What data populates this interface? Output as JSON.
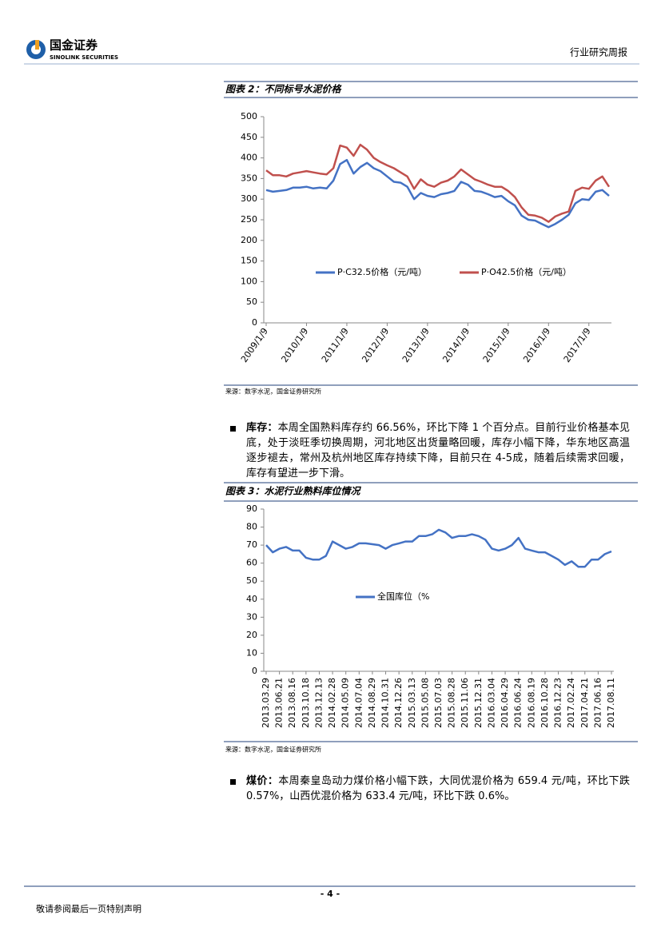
{
  "header": {
    "company_cn": "国金证券",
    "company_en": "SINOLINK SECURITIES",
    "report_type": "行业研究周报"
  },
  "chart_data": [
    {
      "type": "line",
      "title": "图表 2：不同标号水泥价格",
      "source": "来源：数字水泥，国金证券研究所",
      "categories": [
        "2009/1/9",
        null,
        null,
        null,
        null,
        null,
        "2010/1/9",
        null,
        null,
        null,
        null,
        null,
        "2011/1/9",
        null,
        null,
        null,
        null,
        null,
        "2012/1/9",
        null,
        null,
        null,
        null,
        null,
        "2013/1/9",
        null,
        null,
        null,
        null,
        null,
        "2014/1/9",
        null,
        null,
        null,
        null,
        null,
        "2015/1/9",
        null,
        null,
        null,
        null,
        null,
        "2016/1/9",
        null,
        null,
        null,
        null,
        null,
        "2017/1/9",
        null,
        null,
        null
      ],
      "series": [
        {
          "name": "P·C32.5价格（元/吨）",
          "color": "#4472c4",
          "values": [
            322,
            318,
            320,
            322,
            328,
            328,
            330,
            326,
            328,
            326,
            345,
            385,
            395,
            362,
            378,
            388,
            375,
            368,
            355,
            342,
            340,
            330,
            300,
            315,
            308,
            305,
            312,
            315,
            320,
            342,
            335,
            320,
            318,
            312,
            305,
            308,
            295,
            285,
            260,
            250,
            248,
            240,
            232,
            240,
            250,
            262,
            290,
            300,
            298,
            318,
            322,
            308
          ]
        },
        {
          "name": "P·O42.5价格（元/吨）",
          "color": "#c0504d",
          "values": [
            370,
            358,
            358,
            355,
            362,
            365,
            368,
            365,
            362,
            360,
            375,
            430,
            425,
            405,
            432,
            420,
            400,
            390,
            382,
            375,
            365,
            355,
            325,
            348,
            335,
            330,
            340,
            345,
            355,
            372,
            360,
            348,
            342,
            335,
            330,
            330,
            320,
            305,
            280,
            262,
            260,
            255,
            245,
            258,
            265,
            270,
            320,
            328,
            325,
            345,
            355,
            330
          ]
        }
      ],
      "ylim": [
        0,
        500
      ],
      "yticks": [
        0,
        50,
        100,
        150,
        200,
        250,
        300,
        350,
        400,
        450,
        500
      ]
    },
    {
      "type": "line",
      "title": "图表 3：水泥行业熟料库位情况",
      "source": "来源：数字水泥，国金证券研究所",
      "categories": [
        "2013.03.29",
        null,
        "2013.06.21",
        null,
        "2013.08.16",
        null,
        "2013.10.18",
        null,
        "2013.12.13",
        null,
        "2014.02.28",
        null,
        "2014.05.09",
        null,
        "2014.07.04",
        null,
        "2014.08.29",
        null,
        "2014.10.31",
        null,
        "2014.12.26",
        null,
        "2015.03.13",
        null,
        "2015.05.08",
        null,
        "2015.07.03",
        null,
        "2015.08.28",
        null,
        "2015.11.06",
        null,
        "2015.12.31",
        null,
        "2016.03.04",
        null,
        "2016.04.29",
        null,
        "2016.06.24",
        null,
        "2016.08.19",
        null,
        "2016.10.28",
        null,
        "2016.12.23",
        null,
        "2017.02.24",
        null,
        "2017.04.21",
        null,
        "2017.06.16",
        null,
        "2017.08.11"
      ],
      "series": [
        {
          "name": "全国库位（%",
          "color": "#4472c4",
          "values": [
            70,
            66,
            68,
            69,
            67,
            67,
            63,
            62,
            62,
            64,
            72,
            70,
            68,
            69,
            71,
            71,
            70.5,
            70,
            68,
            70,
            71,
            72,
            72,
            75,
            75,
            76,
            78.5,
            77,
            74,
            75,
            75,
            76,
            75,
            73,
            68,
            67,
            68,
            70,
            74,
            68,
            67,
            66,
            66,
            64,
            62,
            59,
            61,
            58,
            58,
            62,
            62,
            65,
            66.5
          ]
        }
      ],
      "ylim": [
        0,
        90
      ],
      "yticks": [
        0,
        10,
        20,
        30,
        40,
        50,
        60,
        70,
        80,
        90
      ]
    }
  ],
  "sections": [
    {
      "label": "库存：",
      "text": "本周全国熟料库存约 66.56%，环比下降 1 个百分点。目前行业价格基本见底，处于淡旺季切换周期，河北地区出货量略回暖，库存小幅下降，华东地区高温逐步褪去，常州及杭州地区库存持续下降，目前只在 4-5成，随着后续需求回暖，库存有望进一步下滑。"
    },
    {
      "label": "煤价：",
      "text": "本周秦皇岛动力煤价格小幅下跌，大同优混价格为 659.4 元/吨，环比下跌 0.57%，山西优混价格为 633.4 元/吨，环比下跌 0.6%。"
    }
  ],
  "footer": {
    "page": "- 4 -",
    "disclaimer": "敬请参阅最后一页特别声明"
  }
}
